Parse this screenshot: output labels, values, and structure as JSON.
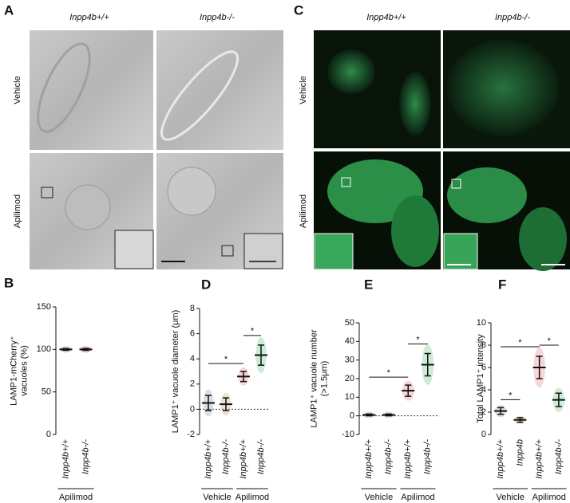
{
  "panels": {
    "A": {
      "letter": "A",
      "columns": [
        "Inpp4b+/+",
        "Inpp4b-/-"
      ],
      "rows": [
        "Vehicle",
        "Apilimod"
      ]
    },
    "C": {
      "letter": "C",
      "columns": [
        "Inpp4b+/+",
        "Inpp4b-/-"
      ],
      "rows": [
        "Vehicle",
        "Apilimod"
      ]
    }
  },
  "chart_data": [
    {
      "type": "dot",
      "letter": "B",
      "y_label": [
        "LAMP1-mCherry⁺",
        "vacuoles (%)"
      ],
      "categories": [
        "Inpp4b+/+",
        "Inpp4b-/-"
      ],
      "values": [
        100,
        100
      ],
      "errors": [
        1,
        1
      ],
      "colors": [
        "#8a8a8a",
        "#b04040"
      ],
      "ylim": [
        0,
        150
      ],
      "yticks": [
        0,
        50,
        100,
        150
      ],
      "group_labels": [
        "Apilimod"
      ]
    },
    {
      "type": "dot",
      "letter": "D",
      "y_label": [
        "LAMP1⁺ vacuole diameter (μm)"
      ],
      "categories": [
        "Inpp4b+/+",
        "Inpp4b-/-",
        "Inpp4b+/+",
        "Inpp4b-/-"
      ],
      "values": [
        0.5,
        0.4,
        2.6,
        4.3
      ],
      "errors": [
        0.6,
        0.5,
        0.4,
        0.8
      ],
      "colors": [
        "#9aa3b5",
        "#c9a77a",
        "#e58a96",
        "#6cc98a"
      ],
      "ylim": [
        -2,
        8
      ],
      "yticks": [
        -2,
        0,
        2,
        4,
        6,
        8
      ],
      "zero_line": true,
      "group_labels": [
        "Vehicle",
        "Apilimod"
      ],
      "brackets": [
        {
          "label": "*",
          "between": [
            0,
            2
          ]
        },
        {
          "label": "*",
          "between": [
            2,
            3
          ]
        }
      ]
    },
    {
      "type": "dot",
      "letter": "E",
      "y_label": [
        "LAMP1⁺ vacuole number",
        "(>1.5μm)"
      ],
      "categories": [
        "Inpp4b+/+",
        "Inpp4b-/-",
        "Inpp4b+/+",
        "Inpp4b-/-"
      ],
      "values": [
        0.5,
        0.5,
        13.5,
        27.5
      ],
      "errors": [
        0.5,
        0.5,
        3,
        6
      ],
      "colors": [
        "#9aa3b5",
        "#c9a77a",
        "#e58a96",
        "#6cc98a"
      ],
      "ylim": [
        -10,
        50
      ],
      "yticks": [
        -10,
        0,
        10,
        20,
        30,
        40,
        50
      ],
      "zero_line": true,
      "group_labels": [
        "Vehicle",
        "Apilimod"
      ],
      "brackets": [
        {
          "label": "*",
          "between": [
            0,
            2
          ]
        },
        {
          "label": "*",
          "between": [
            2,
            3
          ]
        }
      ]
    },
    {
      "type": "dot",
      "letter": "F",
      "y_label": [
        "Total LAMP1⁺ intensity"
      ],
      "categories": [
        "Inpp4b+/+",
        "Inpp4b",
        "Inpp4b+/+",
        "Inpp4b-/-"
      ],
      "values": [
        2.1,
        1.3,
        6,
        3.1
      ],
      "errors": [
        0.3,
        0.2,
        1,
        0.6
      ],
      "colors": [
        "#9aa3b5",
        "#c9a77a",
        "#e58a96",
        "#6cc98a"
      ],
      "ylim": [
        0,
        10
      ],
      "yticks": [
        0,
        2,
        4,
        6,
        8,
        10
      ],
      "group_labels": [
        "Vehicle",
        "Apilimod"
      ],
      "brackets": [
        {
          "label": "*",
          "between": [
            0,
            1
          ]
        },
        {
          "label": "*",
          "between": [
            0,
            2
          ]
        },
        {
          "label": "*",
          "between": [
            2,
            3
          ]
        }
      ]
    }
  ]
}
